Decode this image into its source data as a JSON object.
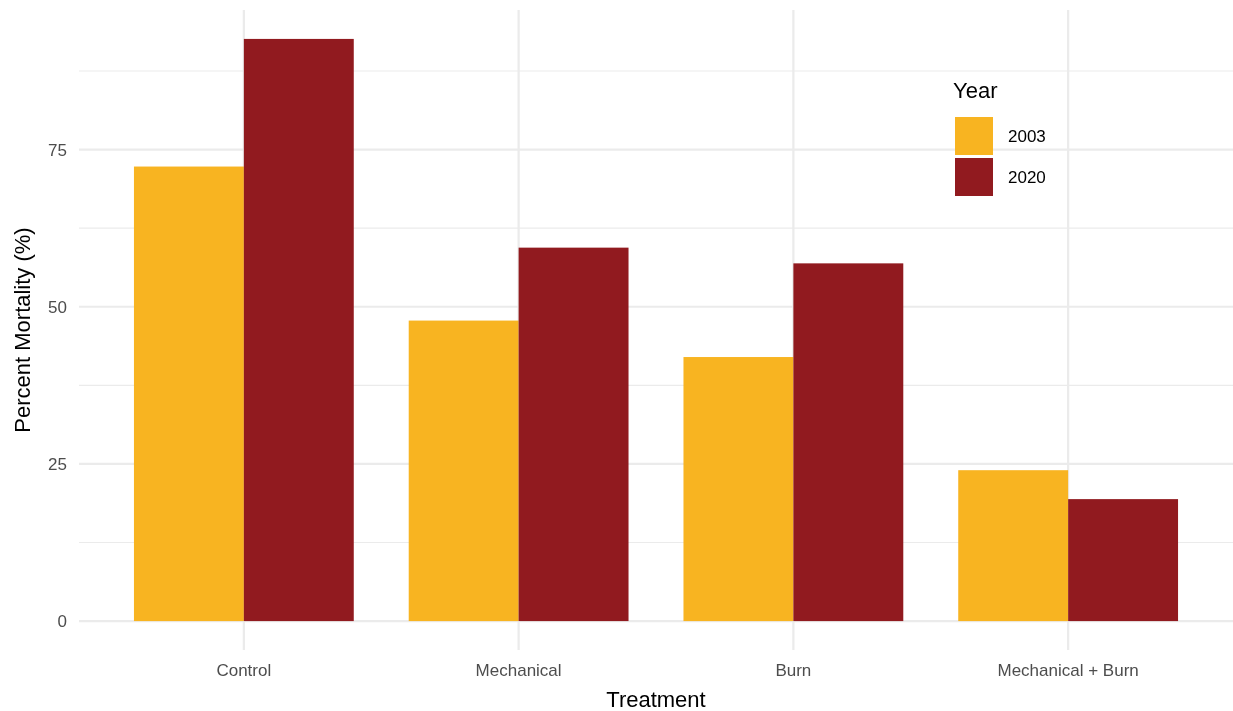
{
  "chart_data": {
    "type": "bar",
    "xlabel": "Treatment",
    "ylabel": "Percent Mortality (%)",
    "legend_title": "Year",
    "categories": [
      "Control",
      "Mechanical",
      "Burn",
      "Mechanical + Burn"
    ],
    "series": [
      {
        "name": "2003",
        "color": "#f8b421",
        "values": [
          72.3,
          47.8,
          42.0,
          24.0
        ]
      },
      {
        "name": "2020",
        "color": "#911a1f",
        "values": [
          92.6,
          59.4,
          56.9,
          19.4
        ]
      }
    ],
    "ylim": [
      -4.6,
      97.2
    ],
    "yticks": [
      0,
      {
        "value": 12.5,
        "label": null
      },
      25,
      {
        "value": 37.5,
        "label": null
      },
      50,
      {
        "value": 62.5,
        "label": null
      },
      75,
      {
        "value": 87.5,
        "label": null
      }
    ],
    "grid": true,
    "legend": "top right"
  }
}
